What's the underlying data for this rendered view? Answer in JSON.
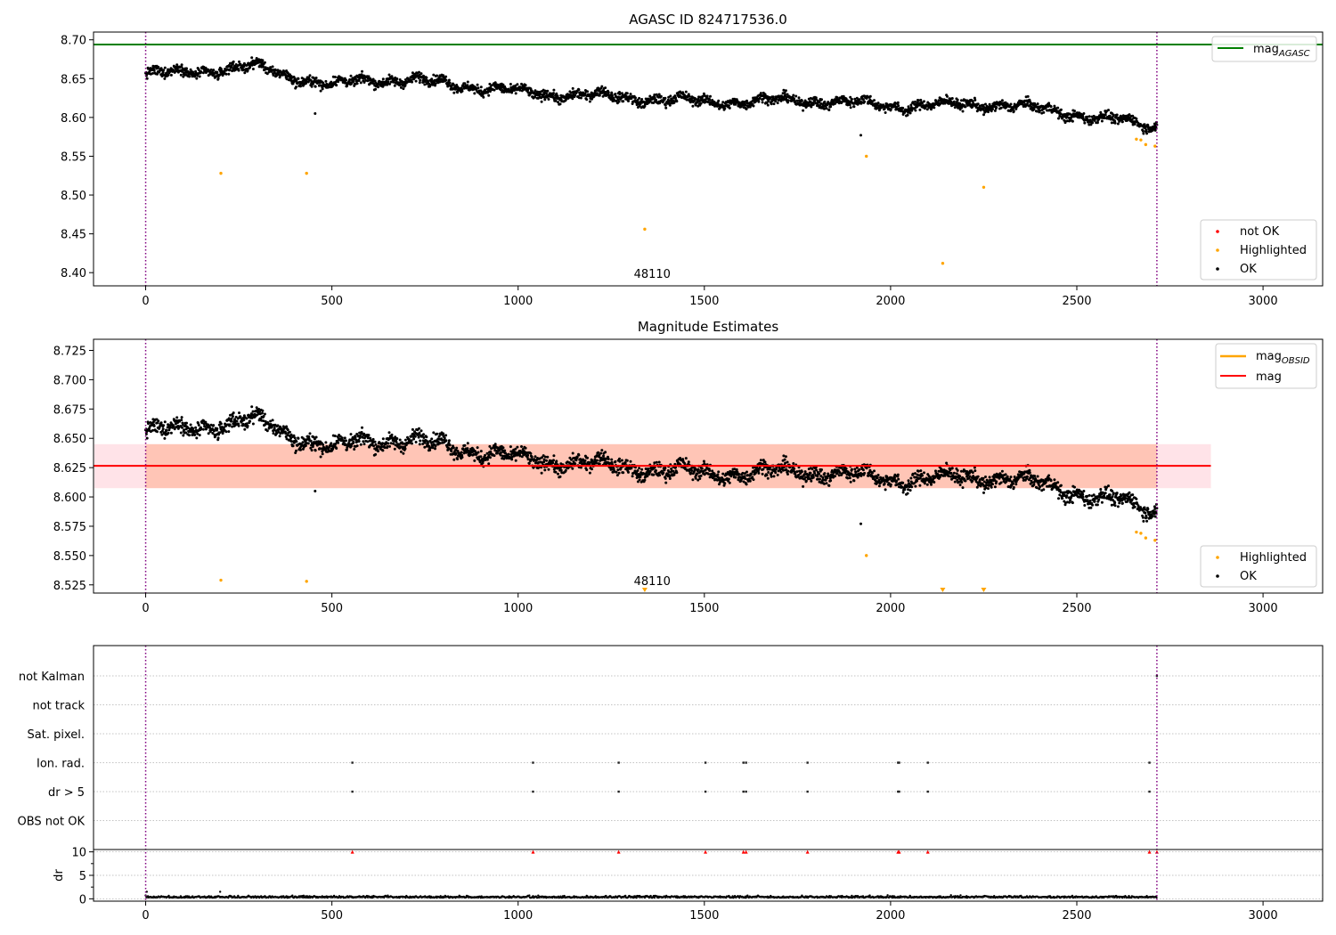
{
  "figure": {
    "colors": {
      "ok": "#000000",
      "highlighted": "#ffa500",
      "not_ok": "#ff0000",
      "agasc_line": "#008000",
      "mag_line": "#ff0000",
      "obsid_line": "#ffa500",
      "obs_boundary": "#800080",
      "band_fill": "#ffa07a",
      "band_outer": "#ffc0cb",
      "grid": "#b0b0b0",
      "dr": "#000000"
    }
  },
  "chart_data": [
    {
      "panel": "top",
      "type": "scatter",
      "title": "AGASC ID 824717536.0",
      "xlabel": "",
      "ylabel": "",
      "xlim": [
        -140,
        3160
      ],
      "ylim": [
        8.383,
        8.71
      ],
      "xticks": [
        0,
        500,
        1000,
        1500,
        2000,
        2500,
        3000
      ],
      "yticks": [
        8.4,
        8.45,
        8.5,
        8.55,
        8.6,
        8.65,
        8.7
      ],
      "ytick_labels": [
        "8.40",
        "8.45",
        "8.50",
        "8.55",
        "8.60",
        "8.65",
        "8.70"
      ],
      "annotation": "48110",
      "legend_lines": {
        "position": "top-right",
        "entries": [
          "mag",
          "AGASC"
        ]
      },
      "legend_points": {
        "position": "bottom-right",
        "entries": [
          "not OK",
          "Highlighted",
          "OK"
        ]
      },
      "lines": [
        {
          "name": "mag_AGASC",
          "y": 8.694
        }
      ],
      "obs_boundaries": [
        0,
        2715
      ],
      "ok_trend": {
        "x": [
          0,
          300,
          500,
          600,
          800,
          1000,
          1200,
          1500,
          1800,
          2000,
          2300,
          2500,
          2715
        ],
        "y": [
          8.655,
          8.665,
          8.64,
          8.65,
          8.645,
          8.632,
          8.628,
          8.62,
          8.622,
          8.615,
          8.617,
          8.604,
          8.588
        ]
      },
      "highlighted_points": {
        "x": [
          202,
          432,
          1340,
          1935,
          2140,
          2250,
          2660,
          2672,
          2685,
          2710
        ],
        "y": [
          8.528,
          8.528,
          8.456,
          8.55,
          8.412,
          8.51,
          8.572,
          8.571,
          8.565,
          8.563
        ]
      }
    },
    {
      "panel": "middle",
      "type": "scatter",
      "title": "Magnitude Estimates",
      "xlabel": "",
      "ylabel": "",
      "xlim": [
        -140,
        3160
      ],
      "ylim": [
        8.518,
        8.7345
      ],
      "xticks": [
        0,
        500,
        1000,
        1500,
        2000,
        2500,
        3000
      ],
      "yticks": [
        8.525,
        8.55,
        8.575,
        8.6,
        8.625,
        8.65,
        8.675,
        8.7,
        8.725
      ],
      "ytick_labels": [
        "8.525",
        "8.550",
        "8.575",
        "8.600",
        "8.625",
        "8.650",
        "8.675",
        "8.700",
        "8.725"
      ],
      "annotation": "48110",
      "legend_lines": {
        "position": "top-right",
        "entries": [
          "mag",
          "OBSID",
          "mag"
        ]
      },
      "legend_points": {
        "position": "bottom-right",
        "entries": [
          "Highlighted",
          "OK"
        ]
      },
      "lines": [
        {
          "name": "mag",
          "y": 8.6265,
          "x_range": [
            -140,
            2860
          ]
        }
      ],
      "band": {
        "y": [
          8.6075,
          8.645
        ],
        "x_range": [
          -140,
          2860
        ]
      },
      "obs_boundaries": [
        0,
        2715
      ],
      "highlighted_points": {
        "x": [
          202,
          432,
          1935,
          2660,
          2672,
          2685,
          2710
        ],
        "y": [
          8.529,
          8.528,
          8.55,
          8.57,
          8.569,
          8.565,
          8.563
        ]
      },
      "highlighted_clipped": {
        "x": [
          1340,
          2140,
          2250
        ]
      }
    },
    {
      "panel": "bottom",
      "type": "scatter",
      "title": "",
      "xlabel": "",
      "ylabel": "dr",
      "xlim": [
        -140,
        3160
      ],
      "xticks": [
        0,
        500,
        1000,
        1500,
        2000,
        2500,
        3000
      ],
      "flag_labels": [
        "not Kalman",
        "not track",
        "Sat. pixel.",
        "Ion. rad.",
        "dr > 5",
        "OBS not OK"
      ],
      "dr_ylim": [
        -0.5,
        10.5
      ],
      "dr_yticks": [
        0,
        5,
        10
      ],
      "obs_boundaries": [
        0,
        2715
      ],
      "flag_points": {
        "Ion. rad.": [
          555,
          1040,
          1270,
          1503,
          1605,
          1612,
          1777,
          2020,
          2023,
          2100,
          2695
        ],
        "dr > 5": [
          555,
          1040,
          1270,
          1503,
          1605,
          1612,
          1777,
          2020,
          2023,
          2100,
          2695
        ],
        "not Kalman": [
          2715
        ]
      },
      "dr_overflow_x": [
        555,
        1040,
        1270,
        1503,
        1605,
        1612,
        1777,
        2020,
        2023,
        2100,
        2695,
        2715
      ]
    }
  ]
}
